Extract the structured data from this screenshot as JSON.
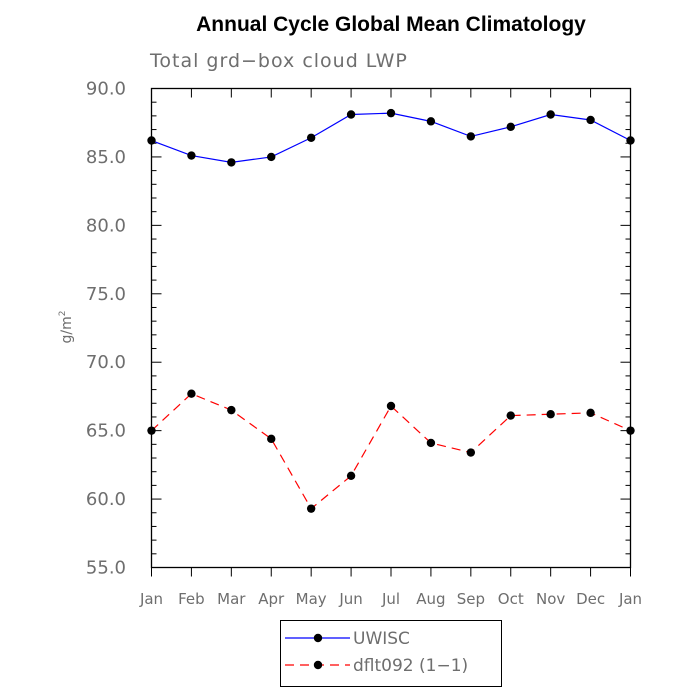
{
  "chart_data": {
    "type": "line",
    "title": "Annual Cycle Global Mean Climatology",
    "subtitle": "Total grd−box cloud LWP",
    "ylabel": "g/m",
    "ylabel_superscript": "2",
    "ylim": [
      55.0,
      90.0
    ],
    "yticks": [
      "55.0",
      "60.0",
      "65.0",
      "70.0",
      "75.0",
      "80.0",
      "85.0",
      "90.0"
    ],
    "categories": [
      "Jan",
      "Feb",
      "Mar",
      "Apr",
      "May",
      "Jun",
      "Jul",
      "Aug",
      "Sep",
      "Oct",
      "Nov",
      "Dec",
      "Jan"
    ],
    "grid": false,
    "legend_position": "bottom",
    "series": [
      {
        "name": "UWISC",
        "color": "#0000ff",
        "dash": "solid",
        "values": [
          86.2,
          85.1,
          84.6,
          85.0,
          86.4,
          88.1,
          88.2,
          87.6,
          86.5,
          87.2,
          88.1,
          87.7,
          86.2
        ]
      },
      {
        "name": "dflt092 (1−1)",
        "color": "#ff0000",
        "dash": "dashed",
        "values": [
          65.0,
          67.7,
          66.5,
          64.4,
          59.3,
          61.7,
          66.8,
          64.1,
          63.4,
          66.1,
          66.2,
          66.3,
          65.0
        ]
      }
    ]
  }
}
